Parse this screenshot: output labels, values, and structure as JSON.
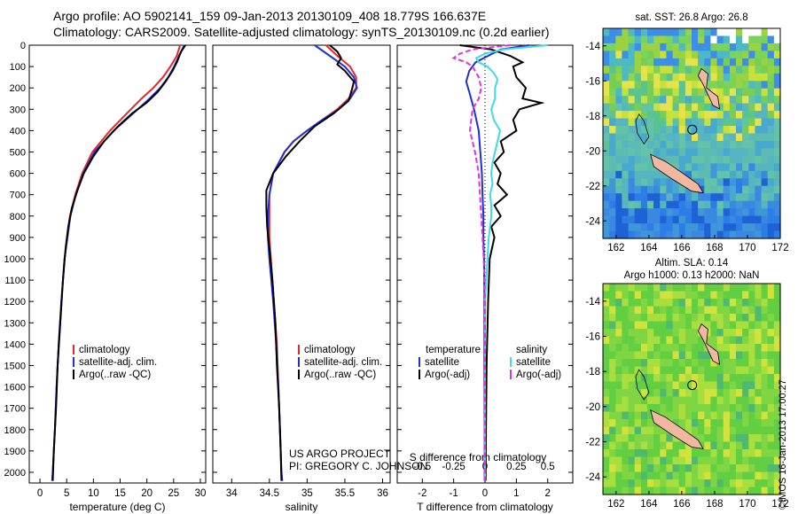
{
  "header": {
    "line1": "Argo profile: AO 5902141_159 09-Jan-2013 20130109_408 18.779S 166.637E",
    "line2": "Climatology: CARS2009. Satellite-adjusted climatology: synTS_20130109.nc (0.2d earlier)"
  },
  "colors": {
    "clim": "#e8262a",
    "sat": "#1f2ed6",
    "argo": "#000000",
    "sat_s": "#3fd9e8",
    "argo_s": "#e630e0"
  },
  "chart_data": [
    {
      "type": "line",
      "name": "temperature-profile",
      "xlabel": "temperature (deg C)",
      "xlim": [
        -2,
        31
      ],
      "ylim": [
        0,
        2050
      ],
      "xticks": [
        0,
        5,
        10,
        15,
        20,
        25,
        30
      ],
      "yticks": [
        0,
        100,
        200,
        300,
        400,
        500,
        600,
        700,
        800,
        900,
        1000,
        1100,
        1200,
        1300,
        1400,
        1500,
        1600,
        1700,
        1800,
        1900,
        2000
      ],
      "legend": [
        "climatology",
        "satellite-adj. clim.",
        "Argo(..raw -QC)"
      ],
      "series": [
        {
          "name": "climatology",
          "pressure": [
            0,
            50,
            100,
            150,
            200,
            250,
            300,
            400,
            500,
            600,
            700,
            800,
            1000,
            1200,
            1400,
            1600,
            1800,
            2000,
            2040
          ],
          "values": [
            26.2,
            25.6,
            24.4,
            23.0,
            21.2,
            19.0,
            17.0,
            13.1,
            9.8,
            7.9,
            6.6,
            5.6,
            4.6,
            4.0,
            3.5,
            3.1,
            2.8,
            2.4,
            2.3
          ]
        },
        {
          "name": "satellite-adj. clim.",
          "pressure": [
            0,
            50,
            100,
            150,
            200,
            250,
            300,
            400,
            500,
            600,
            700,
            800,
            1000,
            1200,
            1400,
            1600,
            1800,
            2000,
            2040
          ],
          "values": [
            27.0,
            26.0,
            25.1,
            24.0,
            22.5,
            20.5,
            18.3,
            13.8,
            10.2,
            8.1,
            6.7,
            5.7,
            4.6,
            4.0,
            3.5,
            3.1,
            2.8,
            2.4,
            2.3
          ]
        },
        {
          "name": "Argo(..raw -QC)",
          "pressure": [
            0,
            30,
            80,
            120,
            170,
            220,
            270,
            320,
            380,
            450,
            520,
            600,
            680,
            760,
            850,
            950,
            1100,
            1300,
            1500,
            1700,
            1900,
            2040
          ],
          "values": [
            27.2,
            26.4,
            25.6,
            24.8,
            23.5,
            22.0,
            19.9,
            17.2,
            14.6,
            12.0,
            10.0,
            8.2,
            7.0,
            6.0,
            5.3,
            4.8,
            4.3,
            3.8,
            3.3,
            3.0,
            2.6,
            2.4
          ]
        }
      ]
    },
    {
      "type": "line",
      "name": "salinity-profile",
      "xlabel": "salinity",
      "xlim": [
        33.75,
        36.1
      ],
      "ylim": [
        0,
        2050
      ],
      "xticks": [
        34,
        34.5,
        35,
        35.5,
        36
      ],
      "legend": [
        "climatology",
        "satellite-adj. clim.",
        "Argo(..raw -QC)"
      ],
      "series": [
        {
          "name": "climatology",
          "pressure": [
            0,
            50,
            100,
            150,
            200,
            250,
            300,
            350,
            400,
            450,
            500,
            600,
            700,
            800,
            900,
            1000,
            1200,
            1400,
            1600,
            1800,
            2000,
            2040
          ],
          "values": [
            35.25,
            35.4,
            35.57,
            35.65,
            35.65,
            35.55,
            35.4,
            35.2,
            35.0,
            34.82,
            34.7,
            34.55,
            34.5,
            34.5,
            34.5,
            34.52,
            34.56,
            34.6,
            34.62,
            34.64,
            34.66,
            34.67
          ]
        },
        {
          "name": "satellite-adj. clim.",
          "pressure": [
            0,
            50,
            100,
            150,
            200,
            250,
            300,
            350,
            400,
            450,
            500,
            600,
            700,
            800,
            900,
            1000,
            1200,
            1400,
            1600,
            1800,
            2000,
            2040
          ],
          "values": [
            35.1,
            35.3,
            35.5,
            35.62,
            35.66,
            35.57,
            35.42,
            35.2,
            35.0,
            34.82,
            34.7,
            34.55,
            34.5,
            34.48,
            34.48,
            34.5,
            34.55,
            34.59,
            34.62,
            34.64,
            34.66,
            34.67
          ]
        },
        {
          "name": "Argo(..raw -QC)",
          "pressure": [
            0,
            30,
            60,
            90,
            120,
            170,
            200,
            260,
            320,
            380,
            450,
            520,
            600,
            680,
            760,
            850,
            950,
            1100,
            1300,
            1500,
            1700,
            1900,
            2040
          ],
          "values": [
            35.3,
            35.4,
            35.45,
            35.4,
            35.5,
            35.62,
            35.6,
            35.55,
            35.35,
            35.1,
            34.9,
            34.72,
            34.55,
            34.46,
            34.46,
            34.47,
            34.5,
            34.54,
            34.58,
            34.6,
            34.63,
            34.65,
            34.66
          ]
        }
      ]
    },
    {
      "type": "line",
      "name": "difference-profile",
      "xlabel": "T difference from climatology",
      "xlabel2": "S difference from climatology",
      "xlim": [
        -2.8,
        2.8
      ],
      "ylim": [
        0,
        2050
      ],
      "xticks_t": [
        -2,
        -1,
        0,
        1,
        2
      ],
      "xticks_s": [
        -0.5,
        -0.25,
        0,
        0.25,
        0.5
      ],
      "xticks_s_labels": [
        "-0.5",
        "-0.25",
        "0",
        "0.25",
        "0.5"
      ],
      "legend_left_title": "temperature",
      "legend_right_title": "salinity",
      "legend": [
        "satellite",
        "Argo(-adj)",
        "satellite",
        "Argo(-adj)"
      ],
      "series": [
        {
          "name": "T satellite",
          "pressure": [
            0,
            20,
            50,
            80,
            120,
            170,
            220,
            300,
            400,
            500,
            600,
            700,
            800,
            900,
            1000,
            1200,
            1500,
            1800,
            2040
          ],
          "values": [
            1.4,
            0.5,
            0.1,
            -0.3,
            -0.5,
            -0.6,
            -0.5,
            -0.35,
            -0.2,
            -0.15,
            -0.1,
            -0.08,
            -0.05,
            -0.05,
            -0.03,
            -0.02,
            -0.02,
            -0.01,
            -0.01
          ]
        },
        {
          "name": "T Argo",
          "pressure": [
            0,
            20,
            50,
            80,
            100,
            150,
            200,
            250,
            270,
            300,
            350,
            400,
            450,
            500,
            550,
            600,
            650,
            700,
            750,
            800,
            850,
            900,
            1000,
            1200,
            1500,
            1800,
            2040
          ],
          "values": [
            -0.8,
            0.2,
            0.8,
            1.2,
            0.9,
            1.0,
            1.3,
            1.2,
            1.8,
            1.1,
            0.9,
            1.0,
            0.5,
            0.6,
            0.3,
            0.5,
            0.4,
            0.7,
            0.3,
            0.5,
            0.2,
            0.3,
            0.15,
            0.1,
            0.05,
            0.03,
            0.02
          ]
        },
        {
          "name": "S satellite",
          "pressure": [
            0,
            20,
            40,
            60,
            80,
            100,
            130,
            160,
            200,
            250,
            300,
            350,
            400,
            450,
            500,
            550,
            600,
            650,
            700,
            750,
            800,
            850,
            900,
            1000,
            1200,
            1500,
            1800,
            2040
          ],
          "values": [
            0.5,
            0.15,
            0.0,
            -0.07,
            -0.05,
            0.02,
            0.07,
            0.1,
            0.08,
            0.08,
            0.05,
            0.07,
            0.12,
            0.1,
            0.08,
            0.06,
            0.05,
            0.06,
            0.04,
            0.05,
            0.05,
            0.04,
            0.03,
            0.02,
            0.0,
            0.0,
            0.0,
            0.0
          ]
        },
        {
          "name": "S Argo",
          "pressure": [
            0,
            20,
            40,
            60,
            80,
            100,
            150,
            200,
            250,
            300,
            400,
            500,
            600,
            700,
            800,
            900,
            1000,
            1200,
            1500,
            1800,
            2040
          ],
          "values": [
            0.2,
            -0.1,
            -0.2,
            -0.25,
            -0.15,
            -0.1,
            -0.05,
            -0.03,
            -0.05,
            -0.1,
            -0.12,
            -0.08,
            -0.05,
            -0.04,
            -0.03,
            -0.02,
            -0.01,
            0.0,
            0.0,
            0.0,
            0.0
          ]
        }
      ]
    }
  ],
  "maps": {
    "sst": {
      "title": "sat. SST: 26.8  Argo: 26.8",
      "yticks": [
        -14,
        -16,
        -18,
        -20,
        -22,
        -24
      ],
      "xticks": [
        162,
        164,
        166,
        168,
        170,
        172
      ]
    },
    "sla": {
      "title_line1": "Altim. SLA: 0.14",
      "title_line2": "Argo h1000: 0.13  h2000: NaN",
      "yticks": [
        -14,
        -16,
        -18,
        -20,
        -22,
        -24
      ],
      "xticks": [
        162,
        164,
        166,
        168,
        170,
        172
      ]
    }
  },
  "footer": {
    "project": "US ARGO PROJECT",
    "pi": "PI: GREGORY C. JOHNSON",
    "imos": "©IMOS 16-Jan-2013 17:00:27"
  }
}
